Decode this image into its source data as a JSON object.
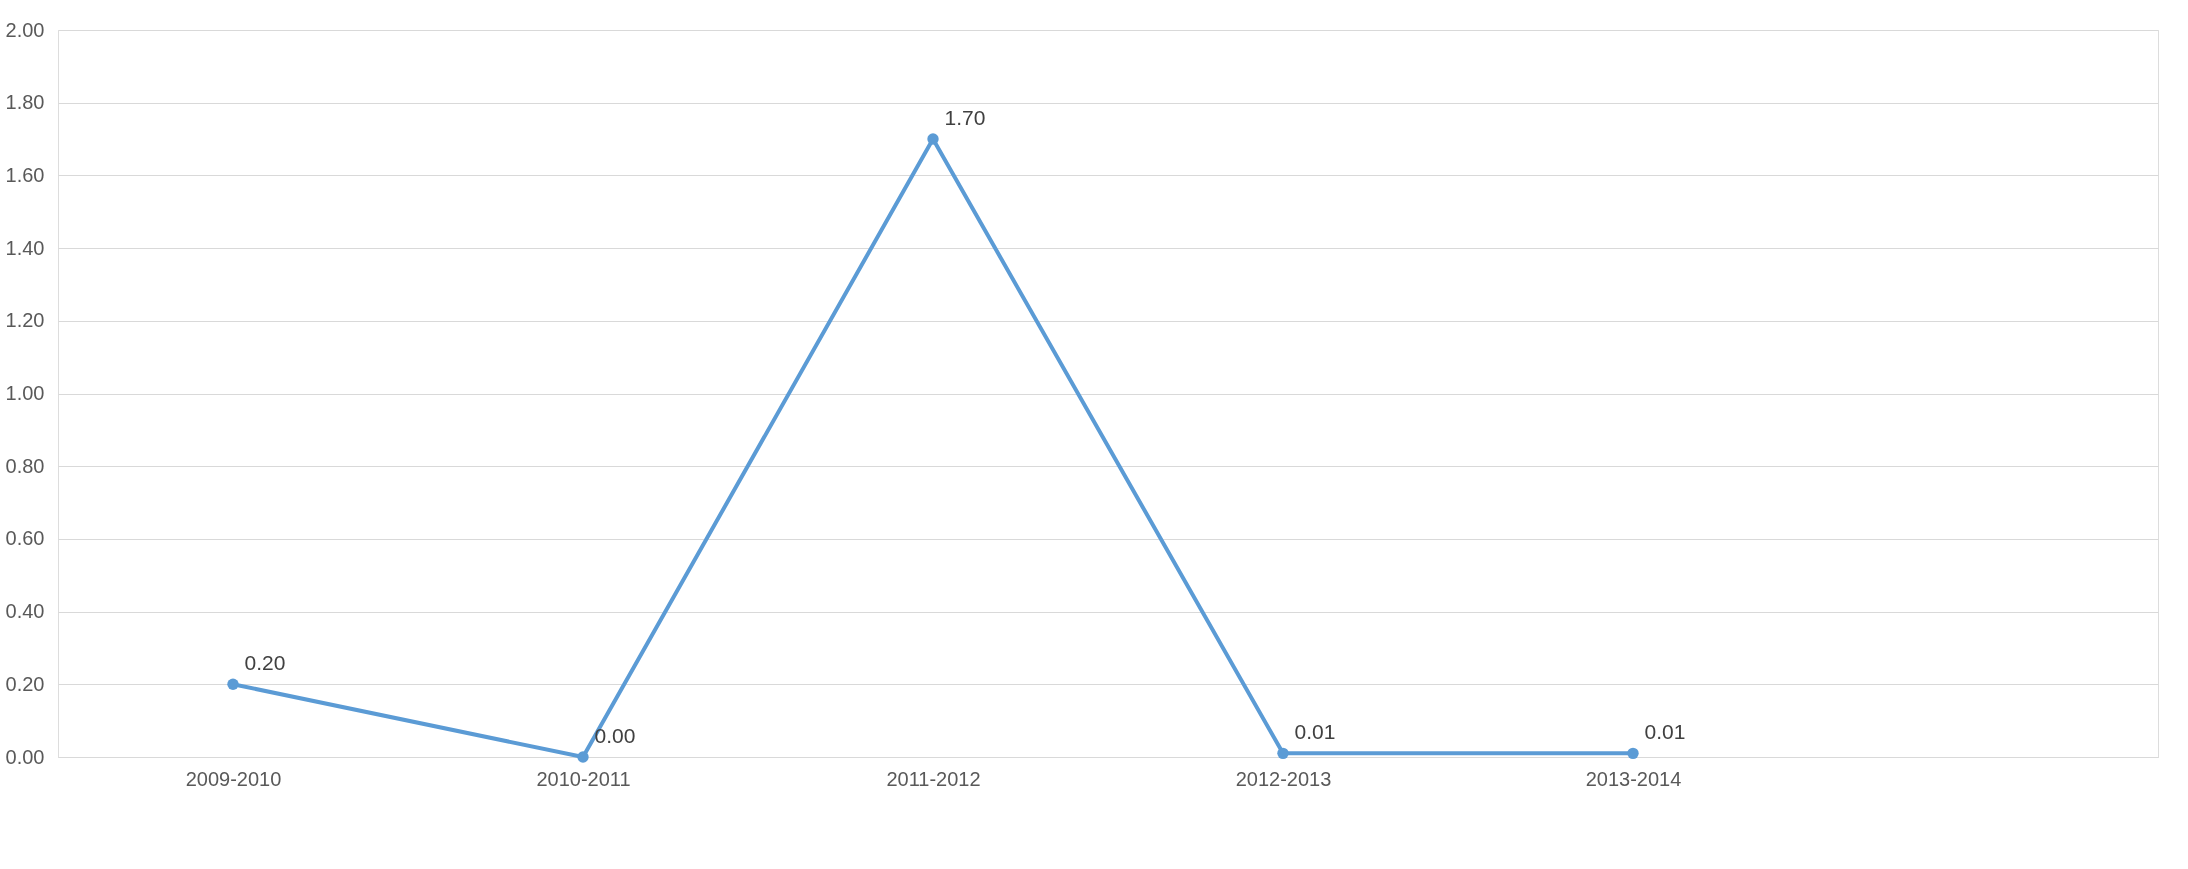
{
  "chart_data": {
    "type": "line",
    "categories": [
      "2009-2010",
      "2010-2011",
      "2011-2012",
      "2012-2013",
      "2013-2014",
      null
    ],
    "series": [
      {
        "color": "#5b9bd5",
        "values": [
          0.2,
          0.0,
          1.7,
          0.01,
          0.01,
          null
        ],
        "value_labels": [
          "0.20",
          "0.00",
          "1.70",
          "0.01",
          "0.01",
          null
        ]
      }
    ],
    "ylim": [
      0,
      2
    ],
    "yticks": [
      {
        "value": 0,
        "label": "0.00"
      },
      {
        "value": 0.2,
        "label": "0.20"
      },
      {
        "value": 0.4,
        "label": "0.40"
      },
      {
        "value": 0.6,
        "label": "0.60"
      },
      {
        "value": 0.8,
        "label": "0.80"
      },
      {
        "value": 1.0,
        "label": "1.00"
      },
      {
        "value": 1.2,
        "label": "1.20"
      },
      {
        "value": 1.4,
        "label": "1.40"
      },
      {
        "value": 1.6,
        "label": "1.60"
      },
      {
        "value": 1.8,
        "label": "1.80"
      },
      {
        "value": 2.0,
        "label": "2.00"
      }
    ],
    "grid": "y",
    "marker": "circle",
    "line_style": "solid"
  }
}
